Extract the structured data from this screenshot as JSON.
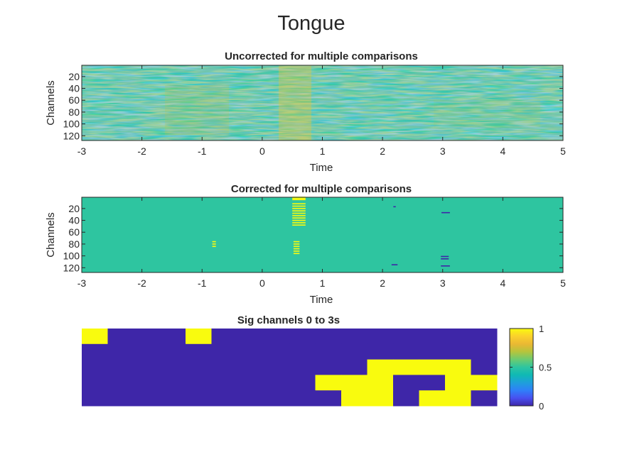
{
  "figure": {
    "title": "Tongue"
  },
  "colors": {
    "axis": "#262626",
    "sig_low": "#3e26a8",
    "sig_high": "#f9fb0e",
    "corrected_bg": "#2ec5a0",
    "colormap": [
      "#3e26a8",
      "#4850f0",
      "#2f7ff9",
      "#1e9fdb",
      "#0fb9b4",
      "#2ec5a0",
      "#6ccb70",
      "#b5c43c",
      "#eab833",
      "#fbd12c",
      "#f9fb0e"
    ]
  },
  "chart_data": [
    {
      "type": "heatmap",
      "title": "Uncorrected for multiple comparisons",
      "xlabel": "Time",
      "ylabel": "Channels",
      "xlim": [
        -3,
        5
      ],
      "xticks": [
        "-3",
        "-2",
        "-1",
        "0",
        "1",
        "2",
        "3",
        "4",
        "5"
      ],
      "ylim": [
        1,
        128
      ],
      "yticks": [
        "20",
        "40",
        "60",
        "80",
        "100",
        "120"
      ],
      "colormap": "parula",
      "description_values": "dense continuous-valued map of time x channel, values roughly 0.2-0.9, yellow band near t=0.5-0.7"
    },
    {
      "type": "heatmap",
      "title": "Corrected for multiple comparisons",
      "xlabel": "Time",
      "ylabel": "Channels",
      "xlim": [
        -3,
        5
      ],
      "xticks": [
        "-3",
        "-2",
        "-1",
        "0",
        "1",
        "2",
        "3",
        "4",
        "5"
      ],
      "ylim": [
        1,
        128
      ],
      "yticks": [
        "20",
        "40",
        "60",
        "80",
        "100",
        "120"
      ],
      "background_value": 0.5,
      "high_marks": [
        {
          "t0": 0.5,
          "t1": 0.72,
          "channels": [
            1,
            3,
            5,
            12,
            16,
            20,
            24,
            28,
            32,
            36,
            40,
            44,
            48
          ]
        },
        {
          "t0": -0.83,
          "t1": -0.77,
          "channels": [
            76,
            80,
            84
          ]
        },
        {
          "t0": 0.52,
          "t1": 0.62,
          "channels": [
            76,
            80,
            84,
            88,
            92,
            96
          ]
        }
      ],
      "low_marks": [
        {
          "t0": 2.18,
          "t1": 2.22,
          "channels": [
            17
          ]
        },
        {
          "t0": 2.15,
          "t1": 2.25,
          "channels": [
            115
          ]
        },
        {
          "t0": 2.98,
          "t1": 3.12,
          "channels": [
            27
          ]
        },
        {
          "t0": 2.97,
          "t1": 3.1,
          "channels": [
            101,
            105
          ]
        },
        {
          "t0": 2.97,
          "t1": 3.12,
          "channels": [
            117
          ]
        }
      ]
    },
    {
      "type": "heatmap",
      "title": "Sig channels 0 to 3s",
      "grid": [
        [
          1,
          0,
          0,
          0,
          1,
          0,
          0,
          0,
          0,
          0,
          0,
          0,
          0,
          0,
          0,
          0
        ],
        [
          0,
          0,
          0,
          0,
          0,
          0,
          0,
          0,
          0,
          0,
          0,
          0,
          0,
          0,
          0,
          0
        ],
        [
          0,
          0,
          0,
          0,
          0,
          0,
          0,
          0,
          0,
          0,
          0,
          1,
          1,
          1,
          1,
          0
        ],
        [
          0,
          0,
          0,
          0,
          0,
          0,
          0,
          0,
          0,
          1,
          1,
          1,
          0,
          0,
          1,
          1
        ],
        [
          0,
          0,
          0,
          0,
          0,
          0,
          0,
          0,
          0,
          0,
          1,
          1,
          0,
          1,
          1,
          0
        ]
      ],
      "colorbar": {
        "clim": [
          0,
          1
        ],
        "ticks": [
          "0",
          "0.5",
          "1"
        ]
      }
    }
  ]
}
